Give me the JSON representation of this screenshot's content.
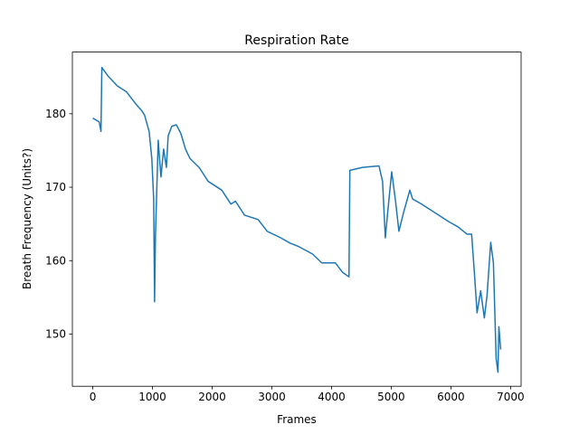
{
  "chart_data": {
    "type": "line",
    "title": "Respiration Rate",
    "x_label": "Frames",
    "y_label": "Breath Frequency (Units?)",
    "x": [
      0,
      107,
      137,
      152,
      259,
      411,
      563,
      715,
      822,
      868,
      944,
      989,
      1020,
      1035,
      1050,
      1096,
      1142,
      1187,
      1233,
      1263,
      1324,
      1400,
      1476,
      1553,
      1629,
      1781,
      1933,
      2161,
      2314,
      2390,
      2542,
      2770,
      2922,
      3151,
      3303,
      3455,
      3683,
      3836,
      4064,
      4186,
      4292,
      4307,
      4521,
      4795,
      4855,
      4901,
      4947,
      5008,
      5068,
      5129,
      5205,
      5312,
      5358,
      5510,
      5738,
      5966,
      6119,
      6271,
      6347,
      6393,
      6438,
      6499,
      6560,
      6606,
      6667,
      6712,
      6758,
      6788,
      6804,
      6834
    ],
    "series": [
      {
        "color": "#1f77b4",
        "values": [
          179.4,
          178.9,
          177.6,
          186.3,
          185.1,
          183.8,
          183,
          181.4,
          180.4,
          179.8,
          177.6,
          173.9,
          168.4,
          154.4,
          163.4,
          176.4,
          171.4,
          175.2,
          172.7,
          177,
          178.3,
          178.5,
          177.3,
          175.2,
          173.9,
          172.7,
          170.8,
          169.6,
          167.7,
          168.1,
          166.2,
          165.6,
          164,
          163.1,
          162.4,
          161.9,
          160.9,
          159.7,
          159.7,
          158.4,
          157.8,
          172.3,
          172.7,
          172.9,
          170.8,
          163.1,
          167.1,
          172.1,
          168.4,
          164,
          166.5,
          169.6,
          168.4,
          167.7,
          166.5,
          165.3,
          164.6,
          163.6,
          163.6,
          158.4,
          152.9,
          155.9,
          152.2,
          155.3,
          162.5,
          159.7,
          146.7,
          144.8,
          151,
          147.9
        ]
      }
    ],
    "xlim": [
      -342,
      7176
    ],
    "ylim": [
      142.9,
      188.4
    ],
    "xticks": [
      0,
      1000,
      2000,
      3000,
      4000,
      5000,
      6000,
      7000
    ],
    "yticks": [
      150,
      160,
      170,
      180
    ]
  }
}
